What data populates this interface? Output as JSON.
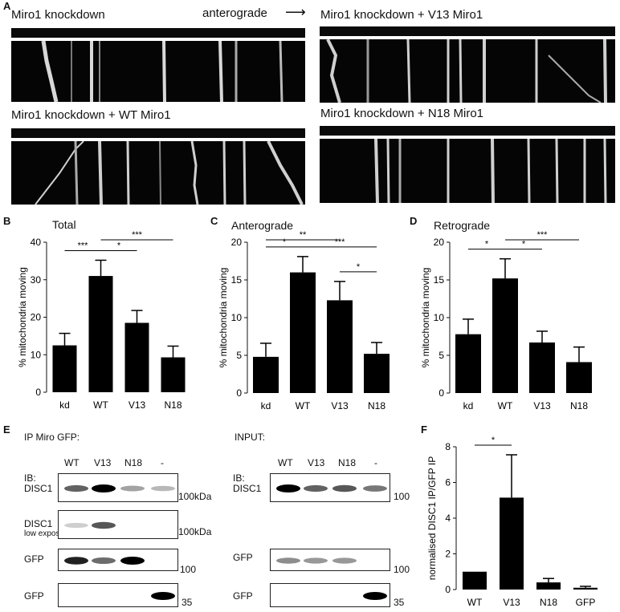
{
  "panelA": {
    "letter": "A",
    "arrow_label": "anterograde",
    "arrow_glyph": "⟶",
    "kymographs": [
      {
        "label": "Miro1 knockdown"
      },
      {
        "label": "Miro1 knockdown + V13 Miro1"
      },
      {
        "label": "Miro1 knockdown + WT Miro1"
      },
      {
        "label": "Miro1 knockdown + N18 Miro1"
      }
    ]
  },
  "chart_data": [
    {
      "letter": "B",
      "type": "bar",
      "title": "Total",
      "ylabel": "% mitochondria moving",
      "categories": [
        "kd",
        "WT",
        "V13",
        "N18"
      ],
      "values": [
        12.5,
        31,
        18.5,
        9.3
      ],
      "errors": [
        3.2,
        4.2,
        3.3,
        3.0
      ],
      "ylim": [
        0,
        40
      ],
      "yticks": [
        "0",
        "10",
        "20",
        "30",
        "40"
      ],
      "significance": [
        {
          "from": "kd",
          "to": "WT",
          "label": "***"
        },
        {
          "from": "WT",
          "to": "V13",
          "label": "*"
        },
        {
          "from": "WT",
          "to": "N18",
          "label": "***"
        }
      ]
    },
    {
      "letter": "C",
      "type": "bar",
      "title": "Anterograde",
      "ylabel": "% mitochondria moving",
      "categories": [
        "kd",
        "WT",
        "V13",
        "N18"
      ],
      "values": [
        4.8,
        16,
        12.3,
        5.2
      ],
      "errors": [
        1.8,
        2.1,
        2.5,
        1.5
      ],
      "ylim": [
        0,
        20
      ],
      "yticks": [
        "0",
        "5",
        "10",
        "15",
        "20"
      ],
      "significance": [
        {
          "from": "kd",
          "to": "WT",
          "label": "*"
        },
        {
          "from": "WT",
          "to": "N18",
          "label": "***"
        },
        {
          "from": "kd",
          "to": "V13",
          "label": "**"
        },
        {
          "from": "V13",
          "to": "N18",
          "label": "*"
        }
      ]
    },
    {
      "letter": "D",
      "type": "bar",
      "title": "Retrograde",
      "ylabel": "% mitochondria moving",
      "categories": [
        "kd",
        "WT",
        "V13",
        "N18"
      ],
      "values": [
        7.8,
        15.2,
        6.7,
        4.1
      ],
      "errors": [
        2.0,
        2.6,
        1.5,
        2.0
      ],
      "ylim": [
        0,
        20
      ],
      "yticks": [
        "0",
        "5",
        "10",
        "15",
        "20"
      ],
      "significance": [
        {
          "from": "kd",
          "to": "WT",
          "label": "*"
        },
        {
          "from": "WT",
          "to": "V13",
          "label": "*"
        },
        {
          "from": "WT",
          "to": "N18",
          "label": "***"
        }
      ]
    },
    {
      "letter": "F",
      "type": "bar",
      "title": "",
      "ylabel": "normalised DISC1 IP/GFP IP",
      "categories": [
        "WT",
        "V13",
        "N18",
        "GFP"
      ],
      "values": [
        1.0,
        5.15,
        0.4,
        0.1
      ],
      "errors": [
        0,
        2.4,
        0.22,
        0.08
      ],
      "ylim": [
        0,
        8
      ],
      "yticks": [
        "0",
        "2",
        "4",
        "6",
        "8"
      ],
      "significance": [
        {
          "from": "WT",
          "to": "V13",
          "label": "*"
        }
      ]
    }
  ],
  "panelE": {
    "letter": "E",
    "ip_title": "IP Miro GFP:",
    "input_title": "INPUT:",
    "lanes": [
      "WT",
      "V13",
      "N18",
      "-"
    ],
    "ib_label": "IB:",
    "ip_blots": [
      {
        "label": "DISC1",
        "sublabel": "",
        "marker": "100kDa",
        "bands": [
          0.55,
          1.0,
          0.25,
          0.15
        ]
      },
      {
        "label": "DISC1",
        "sublabel": "low exposure",
        "marker": "100kDa",
        "bands": [
          0.05,
          0.6,
          0.0,
          0.0
        ]
      },
      {
        "label": "GFP",
        "sublabel": "",
        "marker": "100",
        "bands": [
          0.85,
          0.5,
          1.0,
          0.0
        ]
      },
      {
        "label": "GFP",
        "sublabel": "",
        "marker": "35",
        "bands": [
          0.0,
          0.0,
          0.0,
          1.0
        ]
      }
    ],
    "input_blots": [
      {
        "label": "DISC1",
        "sublabel": "",
        "marker": "100",
        "bands": [
          1.0,
          0.55,
          0.6,
          0.45
        ]
      },
      {
        "label": "GFP",
        "sublabel": "",
        "marker": "100",
        "bands": [
          0.35,
          0.3,
          0.3,
          0.0
        ]
      },
      {
        "label": "GFP",
        "sublabel": "",
        "marker": "35",
        "bands": [
          0.0,
          0.0,
          0.0,
          1.0
        ]
      }
    ]
  }
}
